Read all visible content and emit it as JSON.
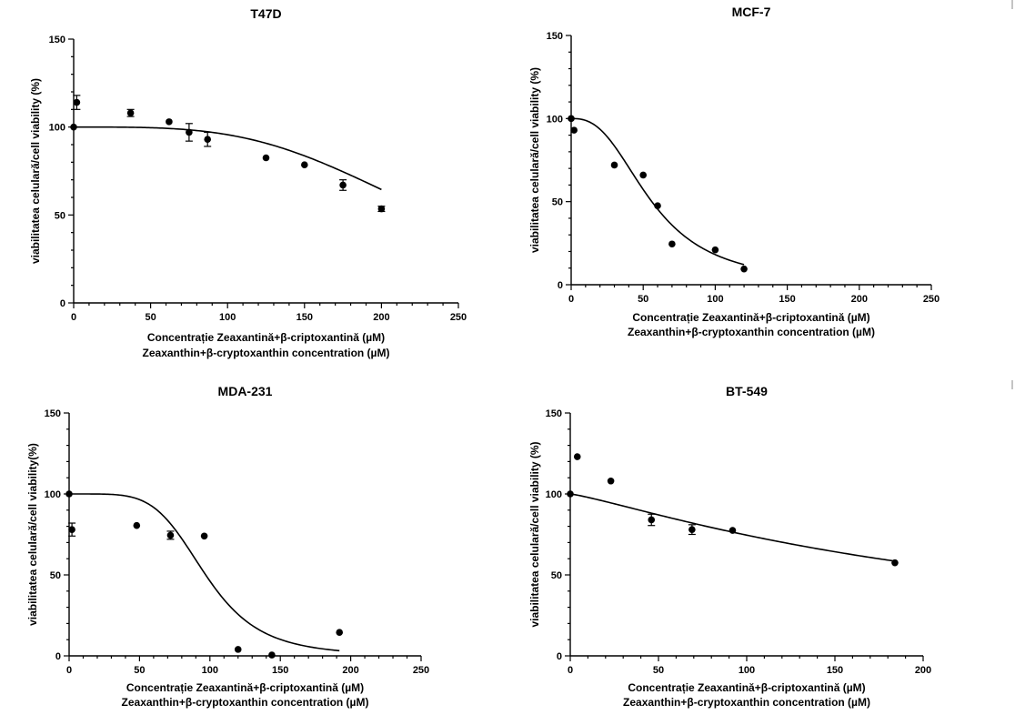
{
  "chart_data": [
    {
      "type": "scatter",
      "title": "T47D",
      "ylabel": "viabilitatea celulară/cell viability (%)",
      "xlabel": [
        "Concentrație Zeaxantină+β-criptoxantină (µM)",
        "Zeaxanthin+β-cryptoxanthin concentration (µM)"
      ],
      "xlim": [
        0,
        250
      ],
      "ylim": [
        0,
        150
      ],
      "xticks": [
        0,
        50,
        100,
        150,
        200,
        250
      ],
      "yticks": [
        0,
        50,
        100,
        150
      ],
      "points": [
        {
          "x": 0,
          "y": 100
        },
        {
          "x": 2,
          "y": 114,
          "err": 4
        },
        {
          "x": 37,
          "y": 108,
          "err": 2
        },
        {
          "x": 62,
          "y": 103
        },
        {
          "x": 75,
          "y": 97,
          "err": 5
        },
        {
          "x": 87,
          "y": 93,
          "err": 4
        },
        {
          "x": 125,
          "y": 82.5
        },
        {
          "x": 150,
          "y": 78.5
        },
        {
          "x": 175,
          "y": 67,
          "err": 3
        },
        {
          "x": 200,
          "y": 53.5,
          "err": 1.5
        }
      ],
      "fit": {
        "top": 100,
        "bottom": 0,
        "ec50": 236,
        "hill": 3.6,
        "xmin": 0,
        "xmax": 200
      }
    },
    {
      "type": "scatter",
      "title": "MCF-7",
      "ylabel": "viabilitatea celulară/cell viability (%)",
      "xlabel": [
        "Concentrație Zeaxantină+β-criptoxantină (µM)",
        "Zeaxanthin+β-cryptoxanthin concentration (µM)"
      ],
      "xlim": [
        0,
        250
      ],
      "ylim": [
        0,
        150
      ],
      "xticks": [
        0,
        50,
        100,
        150,
        200,
        250
      ],
      "yticks": [
        0,
        50,
        100,
        150
      ],
      "points": [
        {
          "x": 0,
          "y": 100
        },
        {
          "x": 2,
          "y": 93
        },
        {
          "x": 30,
          "y": 72
        },
        {
          "x": 50,
          "y": 66
        },
        {
          "x": 60,
          "y": 47.5
        },
        {
          "x": 70,
          "y": 24.5
        },
        {
          "x": 100,
          "y": 21
        },
        {
          "x": 120,
          "y": 9.5
        }
      ],
      "fit": {
        "top": 100,
        "bottom": 0,
        "ec50": 56,
        "hill": 2.6,
        "xmin": 0,
        "xmax": 120
      }
    },
    {
      "type": "scatter",
      "title": "MDA-231",
      "ylabel": "viabilitatea celulară/cell viability(%)",
      "xlabel": [
        "Concentrație Zeaxantină+β-criptoxantină (µM)",
        "Zeaxanthin+β-cryptoxanthin concentration (µM)"
      ],
      "xlim": [
        0,
        250
      ],
      "ylim": [
        0,
        150
      ],
      "xticks": [
        0,
        50,
        100,
        150,
        200,
        250
      ],
      "yticks": [
        0,
        50,
        100,
        150
      ],
      "points": [
        {
          "x": 0,
          "y": 100
        },
        {
          "x": 2,
          "y": 78,
          "err": 4
        },
        {
          "x": 48,
          "y": 80.5
        },
        {
          "x": 72,
          "y": 74.5,
          "err": 2.5
        },
        {
          "x": 96,
          "y": 74
        },
        {
          "x": 120,
          "y": 4
        },
        {
          "x": 144,
          "y": 0.5
        },
        {
          "x": 192,
          "y": 14.5
        }
      ],
      "fit": {
        "top": 100,
        "bottom": 0,
        "ec50": 97,
        "hill": 5,
        "xmin": 0,
        "xmax": 192
      }
    },
    {
      "type": "scatter",
      "title": "BT-549",
      "ylabel": "viabilitatea celulară/cell viability (%)",
      "xlabel": [
        "Concentrație Zeaxantină+β-criptoxantină (µM)",
        "Zeaxanthin+β-cryptoxanthin concentration (µM)"
      ],
      "xlim": [
        0,
        200
      ],
      "ylim": [
        0,
        150
      ],
      "xticks": [
        0,
        50,
        100,
        150,
        200
      ],
      "yticks": [
        0,
        50,
        100,
        150
      ],
      "points": [
        {
          "x": 0,
          "y": 100
        },
        {
          "x": 4,
          "y": 123
        },
        {
          "x": 23,
          "y": 108
        },
        {
          "x": 46,
          "y": 84,
          "err": 3.5
        },
        {
          "x": 69,
          "y": 78,
          "err": 3
        },
        {
          "x": 92,
          "y": 77.5
        },
        {
          "x": 184,
          "y": 57.5
        }
      ],
      "fit": {
        "top": 100,
        "bottom": 0,
        "ec50": 245,
        "hill": 1.2,
        "xmin": 0,
        "xmax": 184
      }
    }
  ]
}
